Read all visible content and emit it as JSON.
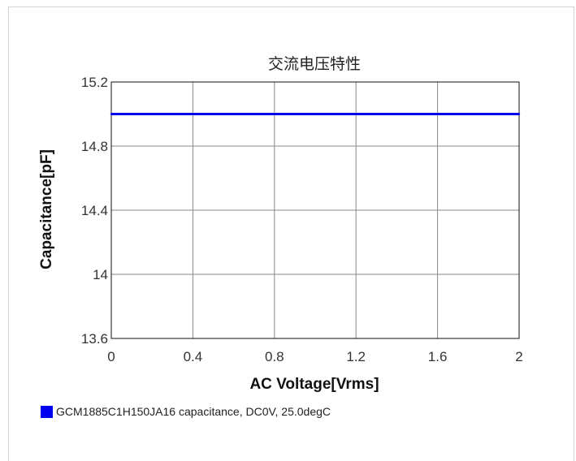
{
  "chart_data": {
    "type": "line",
    "title": "交流电压特性",
    "xlabel": "AC Voltage[Vrms]",
    "ylabel": "Capacitance[pF]",
    "xlim": [
      0,
      2
    ],
    "ylim": [
      13.6,
      15.2
    ],
    "x_ticks": [
      "0",
      "0.4",
      "0.8",
      "1.2",
      "1.6",
      "2"
    ],
    "y_ticks": [
      "15.2",
      "14.8",
      "14.4",
      "14",
      "13.6"
    ],
    "grid": true,
    "legend_position": "bottom-left",
    "series": [
      {
        "name": "GCM1885C1H150JA16 capacitance, DC0V, 25.0degC",
        "color": "#0000ee",
        "x": [
          0,
          0.4,
          0.8,
          1.2,
          1.6,
          2
        ],
        "y": [
          15.0,
          15.0,
          15.0,
          15.0,
          15.0,
          15.0
        ]
      }
    ]
  }
}
